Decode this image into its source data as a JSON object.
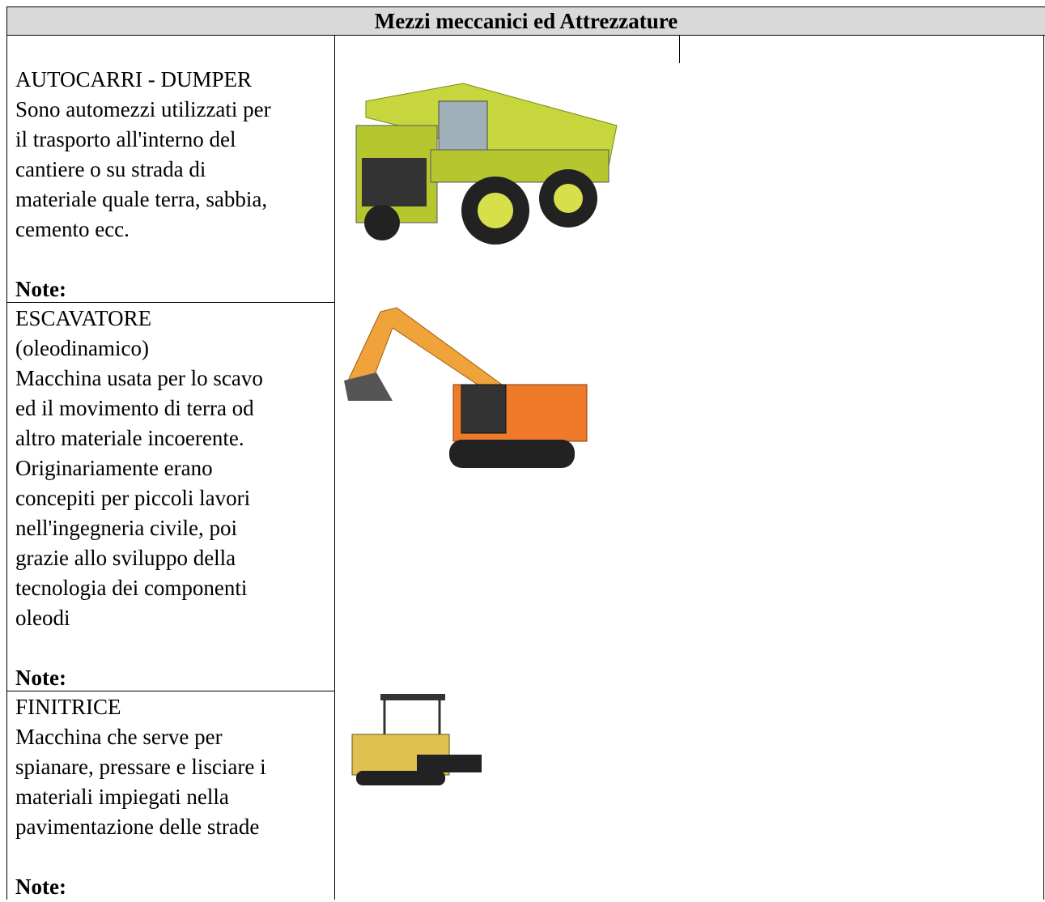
{
  "header": {
    "title": "Mezzi meccanici ed Attrezzature"
  },
  "rows": [
    {
      "name": [
        "AUTOCARRI - DUMPER"
      ],
      "description": [
        "Sono automezzi utilizzati per",
        "il trasporto all'interno del",
        "cantiere o su strada di",
        "materiale quale terra, sabbia,",
        "cemento ecc."
      ],
      "note": "Note:"
    },
    {
      "name": [
        "ESCAVATORE",
        "(oleodinamico)"
      ],
      "description": [
        "Macchina usata per lo scavo",
        "ed il movimento di terra od",
        "altro materiale incoerente.",
        "Originariamente erano",
        "concepiti per piccoli lavori",
        "nell'ingegneria civile, poi",
        "grazie allo sviluppo della",
        "tecnologia dei componenti",
        "oleodi"
      ],
      "note": "Note:"
    },
    {
      "name": [
        "FINITRICE"
      ],
      "description": [
        "Macchina che serve per",
        "spianare, pressare e lisciare i",
        "materiali impiegati nella",
        "pavimentazione delle strade"
      ],
      "note": "Note:"
    }
  ]
}
